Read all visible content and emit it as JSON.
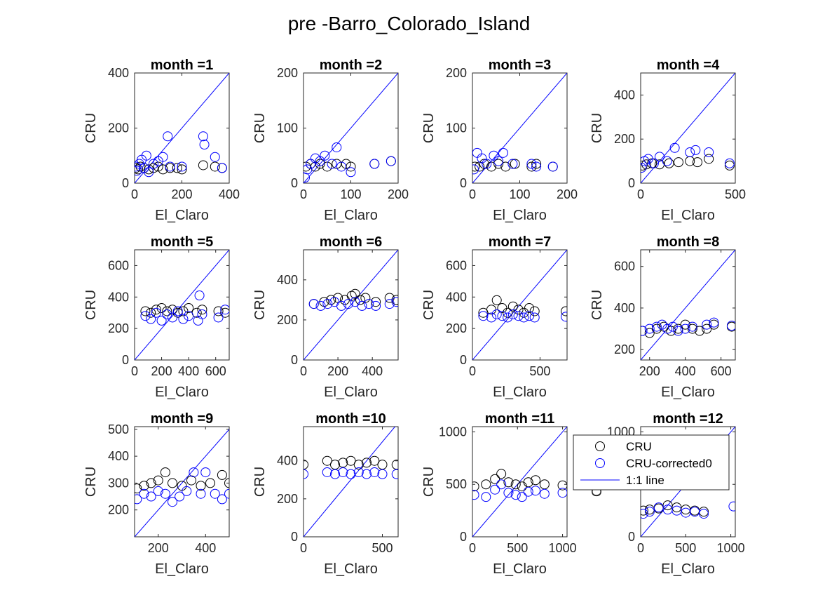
{
  "figure": {
    "title": "pre -Barro_Colorado_Island"
  },
  "legend": {
    "placement": "over month 12 panel, top",
    "entries": [
      {
        "label": "CRU",
        "marker": "circle",
        "color": "#000000"
      },
      {
        "label": "CRU-corrected0",
        "marker": "circle",
        "color": "#0000ff"
      },
      {
        "label": "1:1 line",
        "marker": "line",
        "color": "#0000ff"
      }
    ]
  },
  "colors": {
    "cru": "#000000",
    "corrected": "#0000ff",
    "line": "#0000ff"
  },
  "chart_data": [
    {
      "type": "scatter",
      "title": "month =1",
      "xlabel": "El_Claro",
      "ylabel": "CRU",
      "xlim": [
        0,
        400
      ],
      "ylim": [
        0,
        400
      ],
      "xticks": [
        0,
        200,
        400
      ],
      "yticks": [
        0,
        200,
        400
      ],
      "series": [
        {
          "name": "CRU",
          "x": [
            5,
            15,
            25,
            40,
            60,
            80,
            100,
            120,
            150,
            180,
            200,
            290,
            340,
            370
          ],
          "y": [
            55,
            50,
            60,
            55,
            50,
            55,
            60,
            50,
            55,
            55,
            50,
            65,
            60,
            55
          ]
        },
        {
          "name": "CRU-corrected0",
          "x": [
            5,
            10,
            20,
            30,
            40,
            50,
            60,
            80,
            100,
            120,
            140,
            150,
            200,
            290,
            295,
            340,
            370
          ],
          "y": [
            60,
            45,
            70,
            85,
            55,
            100,
            40,
            70,
            80,
            95,
            170,
            60,
            60,
            170,
            140,
            95,
            55
          ]
        }
      ]
    },
    {
      "type": "scatter",
      "title": "month =2",
      "xlabel": "El_Claro",
      "ylabel": "CRU",
      "xlim": [
        0,
        200
      ],
      "ylim": [
        0,
        200
      ],
      "xticks": [
        0,
        100,
        200
      ],
      "yticks": [
        0,
        100,
        200
      ],
      "series": [
        {
          "name": "CRU",
          "x": [
            5,
            15,
            25,
            35,
            50,
            70,
            90,
            100,
            150,
            185
          ],
          "y": [
            30,
            35,
            30,
            35,
            30,
            35,
            35,
            30,
            35,
            40
          ]
        },
        {
          "name": "CRU-corrected0",
          "x": [
            3,
            8,
            15,
            25,
            35,
            45,
            60,
            70,
            80,
            100,
            150,
            185
          ],
          "y": [
            10,
            25,
            35,
            45,
            40,
            50,
            35,
            65,
            30,
            20,
            35,
            40
          ]
        }
      ]
    },
    {
      "type": "scatter",
      "title": "month =3",
      "xlabel": "El_Claro",
      "ylabel": "CRU",
      "xlim": [
        0,
        200
      ],
      "ylim": [
        0,
        200
      ],
      "xticks": [
        0,
        100,
        200
      ],
      "yticks": [
        0,
        100,
        200
      ],
      "series": [
        {
          "name": "CRU",
          "x": [
            5,
            15,
            25,
            40,
            55,
            70,
            90,
            125,
            135,
            170
          ],
          "y": [
            30,
            30,
            35,
            30,
            35,
            30,
            35,
            30,
            35,
            30
          ]
        },
        {
          "name": "CRU-corrected0",
          "x": [
            3,
            10,
            20,
            30,
            45,
            55,
            65,
            85,
            125,
            135,
            170
          ],
          "y": [
            25,
            55,
            45,
            35,
            50,
            40,
            55,
            35,
            35,
            30,
            30
          ]
        }
      ]
    },
    {
      "type": "scatter",
      "title": "month =4",
      "xlabel": "El_Claro",
      "ylabel": "CRU",
      "xlim": [
        0,
        500
      ],
      "ylim": [
        0,
        500
      ],
      "xticks": [
        0,
        500
      ],
      "yticks": [
        0,
        200,
        400
      ],
      "series": [
        {
          "name": "CRU",
          "x": [
            10,
            30,
            60,
            100,
            150,
            200,
            260,
            300,
            360,
            470
          ],
          "y": [
            80,
            85,
            90,
            85,
            90,
            95,
            100,
            95,
            110,
            80
          ]
        },
        {
          "name": "CRU-corrected0",
          "x": [
            5,
            20,
            40,
            70,
            100,
            140,
            180,
            260,
            290,
            360,
            470
          ],
          "y": [
            70,
            100,
            110,
            90,
            120,
            100,
            160,
            140,
            150,
            140,
            90
          ]
        }
      ]
    },
    {
      "type": "scatter",
      "title": "month =5",
      "xlabel": "El_Claro",
      "ylabel": "CRU",
      "xlim": [
        0,
        700
      ],
      "ylim": [
        0,
        700
      ],
      "xticks": [
        0,
        200,
        400,
        600
      ],
      "yticks": [
        0,
        200,
        400,
        600
      ],
      "series": [
        {
          "name": "CRU",
          "x": [
            80,
            120,
            160,
            200,
            240,
            280,
            320,
            360,
            400,
            460,
            500,
            620,
            670
          ],
          "y": [
            310,
            300,
            320,
            330,
            310,
            320,
            300,
            310,
            330,
            300,
            320,
            310,
            300
          ]
        },
        {
          "name": "CRU-corrected0",
          "x": [
            80,
            120,
            160,
            200,
            240,
            280,
            320,
            360,
            400,
            470,
            480,
            500,
            620,
            670
          ],
          "y": [
            280,
            260,
            300,
            250,
            290,
            270,
            310,
            260,
            280,
            250,
            410,
            290,
            270,
            320
          ]
        }
      ]
    },
    {
      "type": "scatter",
      "title": "month =6",
      "xlabel": "El_Claro",
      "ylabel": "CRU",
      "xlim": [
        0,
        550
      ],
      "ylim": [
        0,
        550
      ],
      "xticks": [
        0,
        200,
        400
      ],
      "yticks": [
        0,
        200,
        400
      ],
      "series": [
        {
          "name": "CRU",
          "x": [
            60,
            120,
            160,
            200,
            240,
            280,
            300,
            330,
            360,
            420,
            500,
            540
          ],
          "y": [
            280,
            290,
            300,
            310,
            300,
            320,
            330,
            300,
            310,
            290,
            310,
            300
          ]
        },
        {
          "name": "CRU-corrected0",
          "x": [
            60,
            100,
            140,
            180,
            220,
            260,
            300,
            340,
            380,
            420,
            500,
            540
          ],
          "y": [
            280,
            270,
            280,
            290,
            270,
            280,
            290,
            270,
            280,
            270,
            280,
            290
          ]
        }
      ]
    },
    {
      "type": "scatter",
      "title": "month =7",
      "xlabel": "El_Claro",
      "ylabel": "CRU",
      "xlim": [
        0,
        700
      ],
      "ylim": [
        0,
        700
      ],
      "xticks": [
        0,
        500
      ],
      "yticks": [
        0,
        200,
        400,
        600
      ],
      "series": [
        {
          "name": "CRU",
          "x": [
            80,
            140,
            180,
            220,
            260,
            300,
            340,
            380,
            420,
            460,
            690
          ],
          "y": [
            300,
            320,
            380,
            330,
            300,
            340,
            320,
            300,
            330,
            310,
            310
          ]
        },
        {
          "name": "CRU-corrected0",
          "x": [
            80,
            140,
            180,
            220,
            260,
            300,
            340,
            380,
            420,
            460,
            690
          ],
          "y": [
            280,
            270,
            290,
            280,
            270,
            290,
            280,
            270,
            280,
            270,
            275
          ]
        }
      ]
    },
    {
      "type": "scatter",
      "title": "month =8",
      "xlabel": "El_Claro",
      "ylabel": "CRU",
      "xlim": [
        150,
        680
      ],
      "ylim": [
        150,
        680
      ],
      "xticks": [
        200,
        400,
        600
      ],
      "yticks": [
        200,
        400,
        600
      ],
      "series": [
        {
          "name": "CRU",
          "x": [
            160,
            200,
            240,
            280,
            320,
            360,
            400,
            440,
            480,
            520,
            560,
            660
          ],
          "y": [
            290,
            280,
            300,
            310,
            290,
            300,
            320,
            300,
            290,
            300,
            320,
            310
          ]
        },
        {
          "name": "CRU-corrected0",
          "x": [
            160,
            200,
            240,
            270,
            300,
            330,
            360,
            400,
            440,
            520,
            560,
            660
          ],
          "y": [
            290,
            300,
            310,
            320,
            300,
            310,
            290,
            300,
            310,
            320,
            330,
            315
          ]
        }
      ]
    },
    {
      "type": "scatter",
      "title": "month =9",
      "xlabel": "El_Claro",
      "ylabel": "CRU",
      "xlim": [
        100,
        500
      ],
      "ylim": [
        100,
        510
      ],
      "xticks": [
        200,
        400
      ],
      "yticks": [
        200,
        300,
        400,
        500
      ],
      "series": [
        {
          "name": "CRU",
          "x": [
            110,
            140,
            170,
            200,
            230,
            260,
            300,
            340,
            380,
            420,
            470,
            500
          ],
          "y": [
            280,
            290,
            300,
            310,
            340,
            300,
            290,
            310,
            290,
            300,
            330,
            300
          ]
        },
        {
          "name": "CRU-corrected0",
          "x": [
            110,
            140,
            170,
            200,
            230,
            260,
            290,
            320,
            350,
            380,
            400,
            440,
            470,
            500
          ],
          "y": [
            240,
            260,
            250,
            270,
            260,
            230,
            250,
            270,
            340,
            260,
            340,
            260,
            240,
            260
          ]
        }
      ]
    },
    {
      "type": "scatter",
      "title": "month =10",
      "xlabel": "El_Claro",
      "ylabel": "CRU",
      "xlim": [
        0,
        600
      ],
      "ylim": [
        0,
        580
      ],
      "xticks": [
        0,
        500
      ],
      "yticks": [
        0,
        200,
        400
      ],
      "series": [
        {
          "name": "CRU",
          "x": [
            0,
            150,
            200,
            250,
            300,
            350,
            400,
            450,
            500,
            590
          ],
          "y": [
            380,
            400,
            380,
            390,
            400,
            380,
            390,
            400,
            380,
            380
          ]
        },
        {
          "name": "CRU-corrected0",
          "x": [
            0,
            150,
            200,
            250,
            300,
            350,
            400,
            450,
            500,
            590
          ],
          "y": [
            330,
            340,
            330,
            340,
            330,
            340,
            330,
            340,
            330,
            330
          ]
        }
      ]
    },
    {
      "type": "scatter",
      "title": "month =11",
      "xlabel": "El_Claro",
      "ylabel": "CRU",
      "xlim": [
        0,
        1050
      ],
      "ylim": [
        0,
        1050
      ],
      "xticks": [
        0,
        500,
        1000
      ],
      "yticks": [
        0,
        500,
        1000
      ],
      "series": [
        {
          "name": "CRU",
          "x": [
            20,
            150,
            250,
            320,
            400,
            480,
            550,
            620,
            700,
            800,
            1000
          ],
          "y": [
            480,
            500,
            550,
            600,
            520,
            500,
            480,
            520,
            540,
            500,
            490
          ]
        },
        {
          "name": "CRU-corrected0",
          "x": [
            20,
            150,
            250,
            320,
            400,
            480,
            550,
            620,
            700,
            800,
            1000
          ],
          "y": [
            400,
            380,
            450,
            500,
            420,
            400,
            380,
            430,
            440,
            410,
            420
          ]
        }
      ]
    },
    {
      "type": "scatter",
      "title": "month =12",
      "xlabel": "El_Claro",
      "ylabel": "CRU",
      "xlim": [
        0,
        1050
      ],
      "ylim": [
        0,
        1050
      ],
      "xticks": [
        0,
        500,
        1000
      ],
      "yticks": [
        0,
        500,
        1000
      ],
      "series": [
        {
          "name": "CRU",
          "x": [
            30,
            100,
            200,
            300,
            400,
            500,
            600,
            700
          ],
          "y": [
            250,
            260,
            270,
            300,
            280,
            260,
            250,
            240
          ]
        },
        {
          "name": "CRU-corrected0",
          "x": [
            30,
            100,
            200,
            300,
            400,
            500,
            600,
            700,
            1030
          ],
          "y": [
            220,
            240,
            280,
            260,
            250,
            230,
            240,
            220,
            290
          ]
        }
      ]
    }
  ]
}
